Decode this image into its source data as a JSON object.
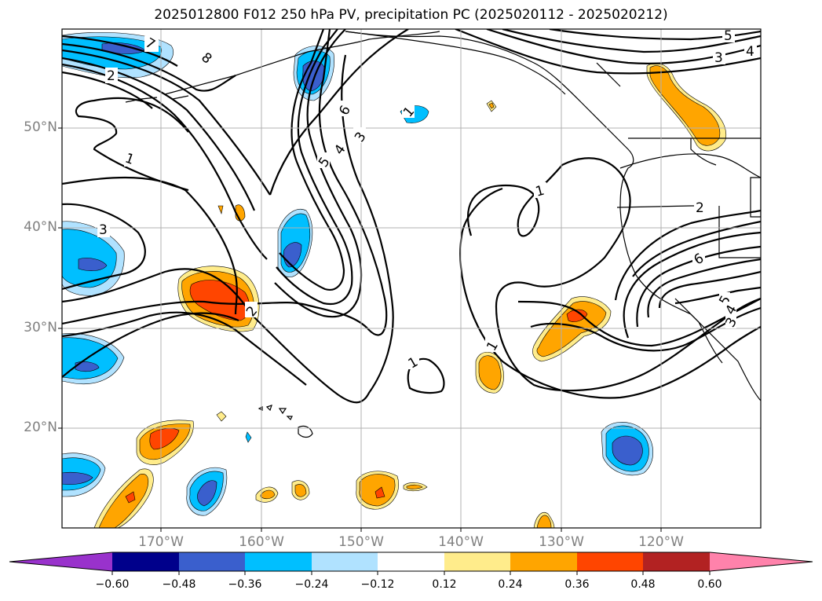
{
  "title": "2025012800 F012 250 hPa PV, precipitation PC (2025020112 - 2025020212)",
  "lat_labels": [
    "50°N",
    "40°N",
    "30°N",
    "20°N"
  ],
  "lon_labels": [
    "170°W",
    "160°W",
    "150°W",
    "140°W",
    "130°W",
    "120°W"
  ],
  "colorbar": {
    "ticks": [
      "−0.60",
      "−0.48",
      "−0.36",
      "−0.24",
      "−0.12",
      "0.12",
      "0.24",
      "0.36",
      "0.48",
      "0.60"
    ],
    "colors": [
      "#9932cc",
      "#00008b",
      "#3a5fcd",
      "#00bfff",
      "#b0e2ff",
      "#ffffff",
      "#ffec8b",
      "#ffa500",
      "#ff4500",
      "#b22222",
      "#ff82ab"
    ]
  },
  "contour_labels": [
    "7",
    "8",
    "2",
    "1",
    "3",
    "6",
    "5",
    "4",
    "3",
    "1",
    "5",
    "4",
    "3",
    "1",
    "2",
    "6",
    "5",
    "4",
    "3",
    "1",
    "1",
    "2"
  ]
}
